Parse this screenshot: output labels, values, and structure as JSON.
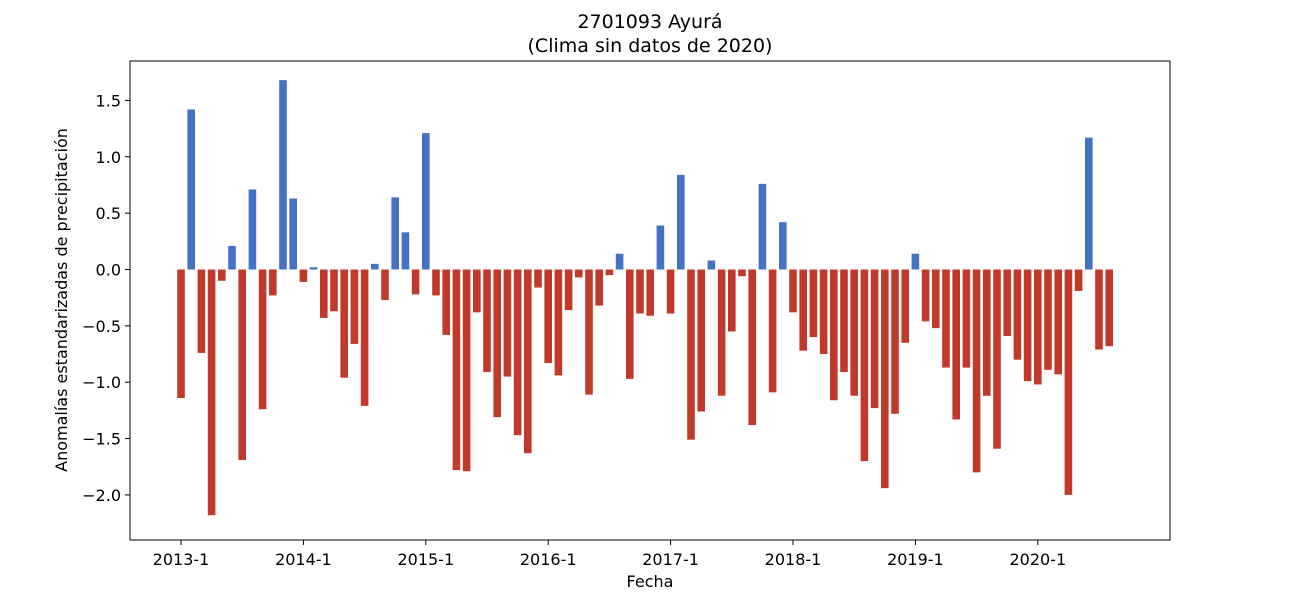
{
  "chart_data": {
    "type": "bar",
    "title": "2701093 Ayurá",
    "subtitle": "(Clima sin datos de 2020)",
    "xlabel": "Fecha",
    "ylabel": "Anomalías estandarizadas de precipitación",
    "x_start": "2013-1",
    "x_ticks": [
      "2013-1",
      "2014-1",
      "2015-1",
      "2016-1",
      "2017-1",
      "2018-1",
      "2019-1",
      "2020-1"
    ],
    "y_ticks": [
      "1.5",
      "1.0",
      "0.5",
      "0.0",
      "−0.5",
      "−1.0",
      "−1.5",
      "−2.0"
    ],
    "ylim": [
      -2.4,
      1.85
    ],
    "grid": false,
    "positive_color": "#4472c4",
    "negative_color": "#c0392b",
    "values": [
      -1.14,
      1.42,
      -0.74,
      -2.18,
      -0.1,
      0.21,
      -1.69,
      0.71,
      -1.24,
      -0.23,
      1.68,
      0.63,
      -0.11,
      0.02,
      -0.43,
      -0.37,
      -0.96,
      -0.66,
      -1.21,
      0.05,
      -0.27,
      0.64,
      0.33,
      -0.22,
      1.21,
      -0.23,
      -0.58,
      -1.78,
      -1.79,
      -0.38,
      -0.91,
      -1.31,
      -0.95,
      -1.47,
      -1.63,
      -0.16,
      -0.83,
      -0.94,
      -0.36,
      -0.07,
      -1.11,
      -0.32,
      -0.05,
      0.14,
      -0.97,
      -0.39,
      -0.41,
      0.39,
      -0.39,
      0.84,
      -1.51,
      -1.26,
      0.08,
      -1.12,
      -0.55,
      -0.06,
      -1.38,
      0.76,
      -1.09,
      0.42,
      -0.38,
      -0.72,
      -0.6,
      -0.75,
      -1.16,
      -0.91,
      -1.12,
      -1.7,
      -1.23,
      -1.94,
      -1.28,
      -0.65,
      0.14,
      -0.46,
      -0.52,
      -0.87,
      -1.33,
      -0.87,
      -1.8,
      -1.12,
      -1.59,
      -0.59,
      -0.8,
      -0.99,
      -1.02,
      -0.89,
      -0.93,
      -2.0,
      -0.19,
      1.17,
      -0.71,
      -0.68
    ]
  }
}
